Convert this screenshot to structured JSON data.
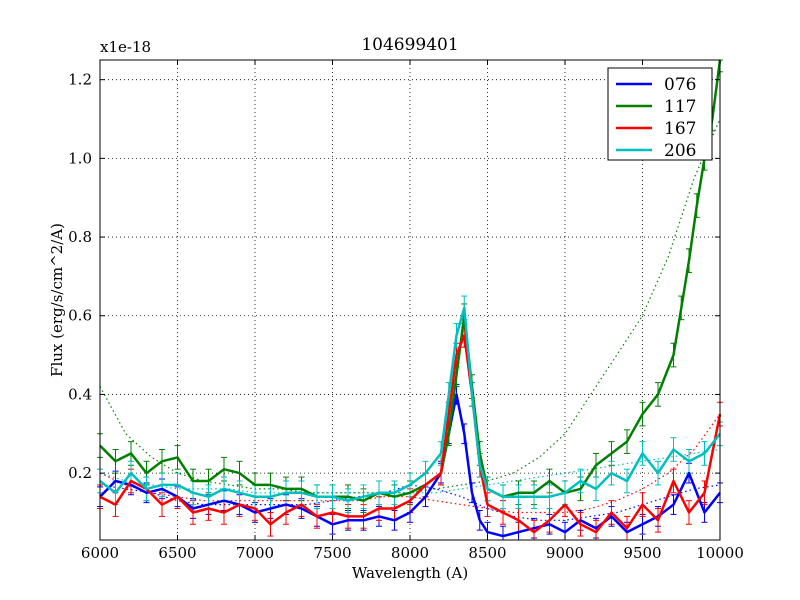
{
  "chart_data": {
    "type": "line",
    "title": "104699401",
    "xlabel": "Wavelength (A)",
    "ylabel": "Flux (erg/s/cm^2/A)",
    "offset_text": "x1e-18",
    "xlim": [
      6000,
      10000
    ],
    "ylim": [
      0.03,
      1.25
    ],
    "xticks": [
      6000,
      6500,
      7000,
      7500,
      8000,
      8500,
      9000,
      9500,
      10000
    ],
    "xtick_labels": [
      "6000",
      "6500",
      "7000",
      "7500",
      "8000",
      "8500",
      "9000",
      "9500",
      "10000"
    ],
    "yticks": [
      0.2,
      0.4,
      0.6,
      0.8,
      1.0,
      1.2
    ],
    "ytick_labels": [
      "0.2",
      "0.4",
      "0.6",
      "0.8",
      "1.0",
      "1.2"
    ],
    "grid": true,
    "legend_position": "top-right",
    "series": [
      {
        "name": "076",
        "color": "#0000ff",
        "x": [
          6000,
          6100,
          6200,
          6300,
          6400,
          6500,
          6600,
          6700,
          6800,
          6900,
          7000,
          7100,
          7200,
          7300,
          7400,
          7500,
          7600,
          7700,
          7800,
          7900,
          8000,
          8100,
          8200,
          8250,
          8300,
          8350,
          8400,
          8450,
          8500,
          8600,
          8700,
          8800,
          8900,
          9000,
          9100,
          9200,
          9300,
          9400,
          9500,
          9600,
          9700,
          9800,
          9900,
          10000
        ],
        "y": [
          0.14,
          0.18,
          0.17,
          0.15,
          0.16,
          0.14,
          0.11,
          0.12,
          0.13,
          0.12,
          0.1,
          0.11,
          0.12,
          0.11,
          0.09,
          0.07,
          0.08,
          0.08,
          0.09,
          0.08,
          0.1,
          0.14,
          0.2,
          0.3,
          0.4,
          0.3,
          0.15,
          0.08,
          0.05,
          0.04,
          0.05,
          0.06,
          0.07,
          0.05,
          0.08,
          0.06,
          0.09,
          0.05,
          0.07,
          0.09,
          0.12,
          0.2,
          0.1,
          0.15
        ],
        "err": 0.025,
        "trend": [
          0.17,
          0.16,
          0.15,
          0.13,
          0.12,
          0.12,
          0.12,
          0.12,
          0.12,
          0.13,
          0.14,
          0.15,
          0.17,
          0.16,
          0.14,
          0.11,
          0.09,
          0.08,
          0.08,
          0.09,
          0.1,
          0.12,
          0.14,
          0.16,
          0.17
        ]
      },
      {
        "name": "117",
        "color": "#008000",
        "x": [
          6000,
          6100,
          6200,
          6300,
          6400,
          6500,
          6600,
          6700,
          6800,
          6900,
          7000,
          7100,
          7200,
          7300,
          7400,
          7500,
          7600,
          7700,
          7800,
          7900,
          8000,
          8100,
          8200,
          8250,
          8300,
          8350,
          8400,
          8450,
          8500,
          8600,
          8700,
          8800,
          8900,
          9000,
          9100,
          9200,
          9300,
          9400,
          9500,
          9600,
          9700,
          9750,
          9800,
          9850,
          9900,
          9950,
          10000
        ],
        "y": [
          0.27,
          0.23,
          0.25,
          0.2,
          0.23,
          0.24,
          0.18,
          0.18,
          0.21,
          0.2,
          0.17,
          0.17,
          0.16,
          0.16,
          0.14,
          0.14,
          0.14,
          0.13,
          0.15,
          0.14,
          0.15,
          0.17,
          0.2,
          0.3,
          0.45,
          0.6,
          0.42,
          0.25,
          0.16,
          0.14,
          0.15,
          0.15,
          0.18,
          0.15,
          0.16,
          0.22,
          0.25,
          0.28,
          0.35,
          0.4,
          0.5,
          0.62,
          0.74,
          0.88,
          1.0,
          1.1,
          1.25
        ],
        "err": 0.03,
        "trend": [
          0.42,
          0.3,
          0.24,
          0.2,
          0.18,
          0.17,
          0.16,
          0.16,
          0.15,
          0.15,
          0.15,
          0.15,
          0.15,
          0.16,
          0.17,
          0.18,
          0.2,
          0.24,
          0.3,
          0.4,
          0.5,
          0.6,
          0.75,
          0.95,
          1.1
        ]
      },
      {
        "name": "167",
        "color": "#ff0000",
        "x": [
          6000,
          6100,
          6200,
          6300,
          6400,
          6500,
          6600,
          6700,
          6800,
          6900,
          7000,
          7100,
          7200,
          7300,
          7400,
          7500,
          7600,
          7700,
          7800,
          7900,
          8000,
          8100,
          8200,
          8250,
          8300,
          8350,
          8400,
          8450,
          8500,
          8600,
          8700,
          8800,
          8900,
          9000,
          9100,
          9200,
          9300,
          9400,
          9500,
          9600,
          9700,
          9800,
          9900,
          10000
        ],
        "y": [
          0.14,
          0.12,
          0.18,
          0.16,
          0.12,
          0.14,
          0.1,
          0.11,
          0.1,
          0.12,
          0.11,
          0.07,
          0.1,
          0.12,
          0.09,
          0.1,
          0.09,
          0.09,
          0.11,
          0.11,
          0.13,
          0.17,
          0.2,
          0.35,
          0.5,
          0.55,
          0.4,
          0.22,
          0.12,
          0.1,
          0.08,
          0.05,
          0.08,
          0.12,
          0.07,
          0.05,
          0.1,
          0.06,
          0.12,
          0.08,
          0.18,
          0.1,
          0.15,
          0.35
        ],
        "err": 0.03,
        "trend": [
          0.2,
          0.17,
          0.15,
          0.14,
          0.13,
          0.13,
          0.13,
          0.13,
          0.13,
          0.13,
          0.13,
          0.14,
          0.14,
          0.13,
          0.12,
          0.11,
          0.1,
          0.1,
          0.1,
          0.11,
          0.13,
          0.16,
          0.2,
          0.26,
          0.35
        ]
      },
      {
        "name": "206",
        "color": "#00bfbf",
        "x": [
          6000,
          6100,
          6200,
          6300,
          6400,
          6500,
          6600,
          6700,
          6800,
          6900,
          7000,
          7100,
          7200,
          7300,
          7400,
          7500,
          7600,
          7700,
          7800,
          7900,
          8000,
          8100,
          8200,
          8250,
          8300,
          8350,
          8400,
          8450,
          8500,
          8600,
          8700,
          8800,
          8900,
          9000,
          9100,
          9200,
          9300,
          9400,
          9500,
          9600,
          9700,
          9800,
          9900,
          10000
        ],
        "y": [
          0.18,
          0.15,
          0.2,
          0.16,
          0.17,
          0.17,
          0.15,
          0.14,
          0.16,
          0.15,
          0.14,
          0.14,
          0.15,
          0.15,
          0.14,
          0.14,
          0.13,
          0.14,
          0.15,
          0.15,
          0.17,
          0.2,
          0.25,
          0.4,
          0.55,
          0.62,
          0.4,
          0.22,
          0.16,
          0.14,
          0.14,
          0.14,
          0.14,
          0.15,
          0.18,
          0.16,
          0.2,
          0.18,
          0.25,
          0.2,
          0.26,
          0.23,
          0.25,
          0.3
        ],
        "err": 0.03,
        "trend": [
          0.2,
          0.18,
          0.17,
          0.16,
          0.16,
          0.16,
          0.15,
          0.15,
          0.15,
          0.15,
          0.15,
          0.15,
          0.15,
          0.15,
          0.16,
          0.17,
          0.18,
          0.19,
          0.2,
          0.21,
          0.22,
          0.23,
          0.24,
          0.25,
          0.26
        ]
      }
    ]
  }
}
